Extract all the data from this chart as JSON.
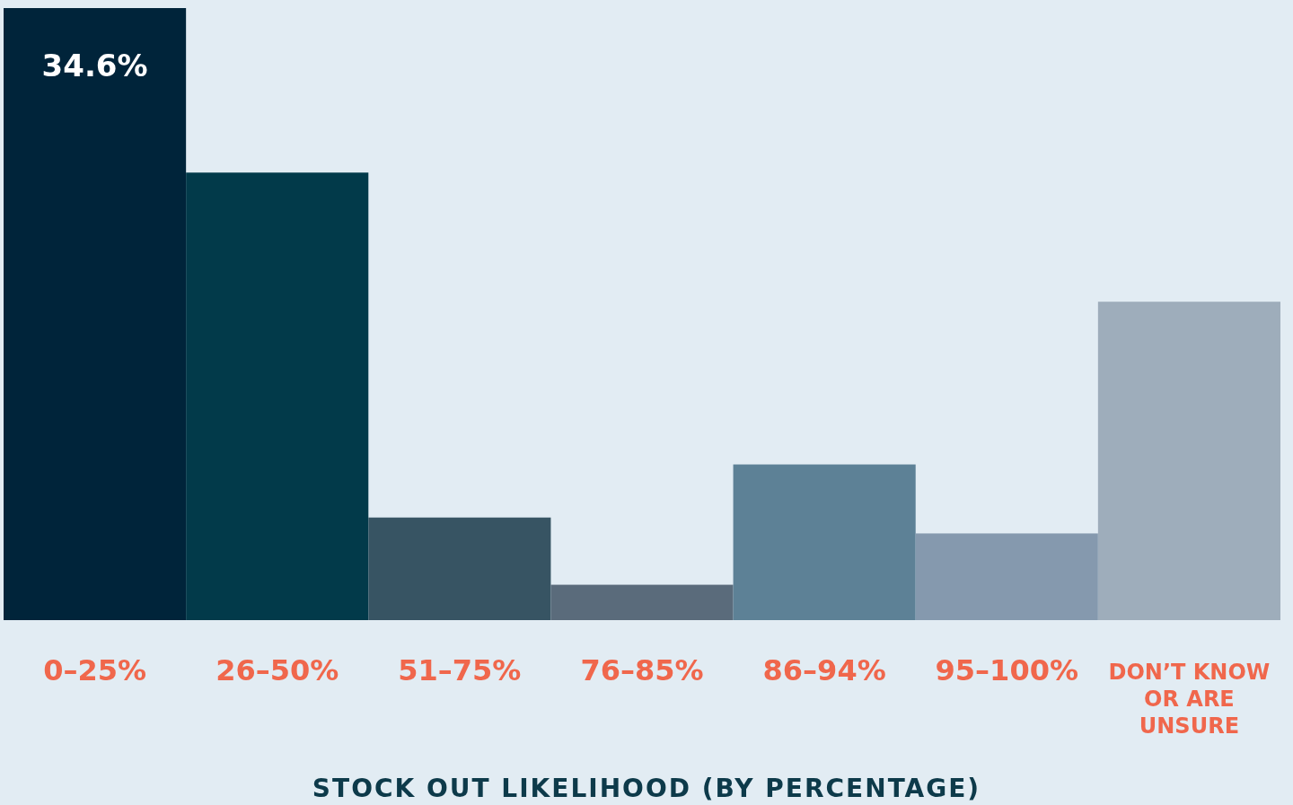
{
  "chart_data": {
    "type": "bar",
    "xlabel": "STOCK OUT LIKELIHOOD (BY PERCENTAGE)",
    "categories": [
      "0–25%",
      "26–50%",
      "51–75%",
      "76–85%",
      "86–94%",
      "95–100%",
      "DON’T KNOW OR ARE UNSURE"
    ],
    "values": [
      34.6,
      25.3,
      5.8,
      2.0,
      8.8,
      4.9,
      18.0
    ],
    "colors": [
      "#00243a",
      "#023a4a",
      "#375463",
      "#5a6b7b",
      "#5d8196",
      "#8599ae",
      "#9eadbb"
    ],
    "value_labels": [
      "34.6%",
      null,
      null,
      null,
      null,
      null,
      null
    ]
  }
}
